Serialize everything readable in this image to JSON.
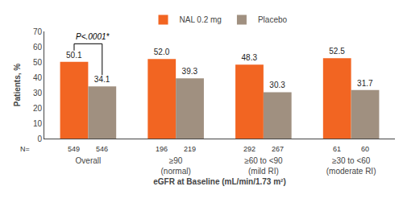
{
  "chart_data": {
    "type": "bar",
    "categories": [
      "Overall",
      "≥90\n(normal)",
      "≥60 to <90\n(mild RI)",
      "≥30 to <60\n(moderate RI)"
    ],
    "series": [
      {
        "name": "NAL 0.2 mg",
        "color": "#F26522",
        "values": [
          50.1,
          52.0,
          48.3,
          52.5
        ],
        "value_labels": [
          "50.1",
          "52.0",
          "48.3",
          "52.5"
        ],
        "n": [
          549,
          196,
          292,
          61
        ]
      },
      {
        "name": "Placebo",
        "color": "#A09080",
        "values": [
          34.1,
          39.3,
          30.3,
          31.7
        ],
        "value_labels": [
          "34.1",
          "39.3",
          "30.3",
          "31.7"
        ],
        "n": [
          546,
          219,
          267,
          60
        ]
      }
    ],
    "n_label": "N=",
    "xlabel": "eGFR at Baseline (mL/min/1.73 m²)",
    "ylabel": "Patients, %",
    "ylim": [
      0,
      70
    ],
    "yticks": [
      0,
      10,
      20,
      30,
      40,
      50,
      60,
      70
    ],
    "grid": false,
    "legend": "top",
    "data_labels": true,
    "annotations": [
      {
        "text": "P<.0001*",
        "category": 0
      }
    ]
  }
}
